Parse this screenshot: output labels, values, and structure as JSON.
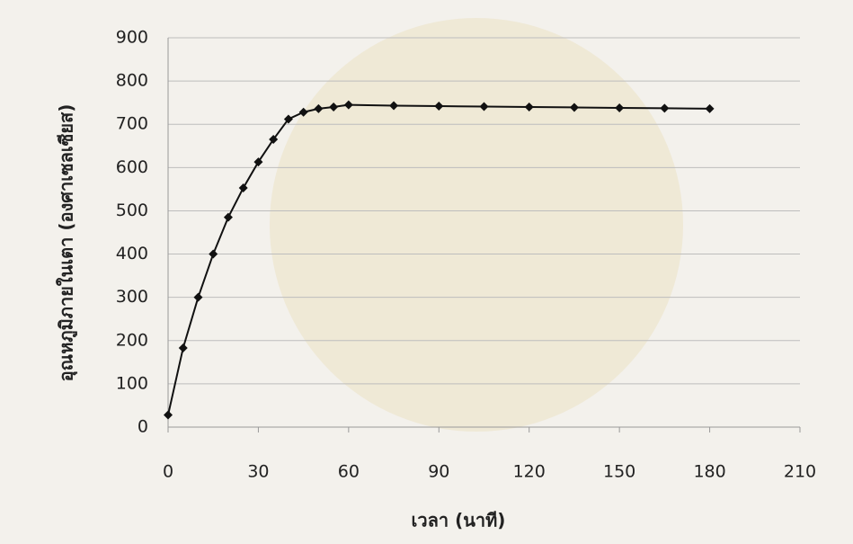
{
  "chart_data": {
    "type": "line",
    "x_label": "เวลา (นาที)",
    "y_label": "อุณหภูมิภายในเตา (องศาเซลเซียส)",
    "x": [
      0,
      5,
      10,
      15,
      20,
      25,
      30,
      35,
      40,
      45,
      50,
      55,
      60,
      75,
      90,
      105,
      120,
      135,
      150,
      165,
      180
    ],
    "values": [
      28,
      183,
      300,
      400,
      485,
      553,
      613,
      665,
      712,
      728,
      736,
      740,
      745,
      743,
      742,
      741,
      740,
      739,
      738,
      737,
      736
    ],
    "color": "#111111",
    "xlim": [
      0,
      210
    ],
    "xticks": [
      0,
      30,
      60,
      90,
      120,
      150,
      180,
      210
    ],
    "ylim": [
      0,
      900
    ],
    "yticks": [
      0,
      100,
      200,
      300,
      400,
      500,
      600,
      700,
      800,
      900
    ],
    "grid": true
  }
}
